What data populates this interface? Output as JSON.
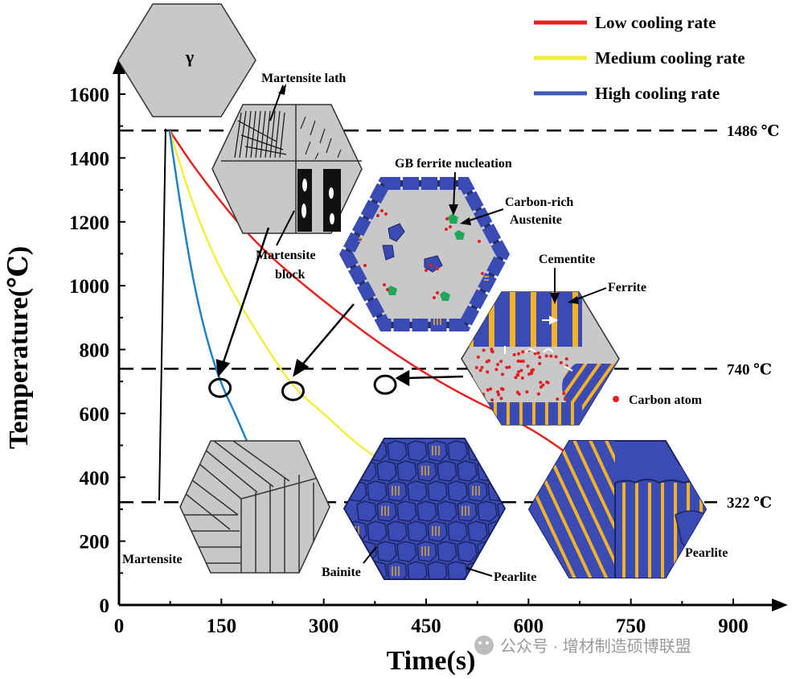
{
  "axes": {
    "ylabel": "Temperature(℃)",
    "xlabel": "Time(s)",
    "x_ticks": [
      "0",
      "150",
      "300",
      "450",
      "600",
      "750",
      "900"
    ],
    "y_ticks": [
      "0",
      "200",
      "400",
      "600",
      "800",
      "1000",
      "1200",
      "1400",
      "1600"
    ],
    "x_range": [
      0,
      900
    ],
    "y_range": [
      0,
      1600
    ]
  },
  "legend": {
    "items": [
      {
        "label": "Low cooling rate",
        "color": "#e8201f"
      },
      {
        "label": "Medium cooling rate",
        "color": "#f2ee3a"
      },
      {
        "label": "High cooling rate",
        "color": "#3e5bb8"
      }
    ]
  },
  "temperature_lines": [
    {
      "value": 1486,
      "label": "1486 ℃"
    },
    {
      "value": 740,
      "label": "740 ℃"
    },
    {
      "value": 322,
      "label": "322 ℃"
    }
  ],
  "cooling_curves": [
    {
      "name": "Low cooling rate",
      "color": "#e8201f",
      "points": [
        [
          74,
          1486
        ],
        [
          120,
          1340
        ],
        [
          200,
          1130
        ],
        [
          300,
          950
        ],
        [
          400,
          790
        ],
        [
          500,
          660
        ],
        [
          600,
          560
        ],
        [
          680,
          440
        ]
      ]
    },
    {
      "name": "Medium cooling rate",
      "color": "#f2ee3a",
      "points": [
        [
          74,
          1486
        ],
        [
          110,
          1240
        ],
        [
          150,
          1040
        ],
        [
          200,
          860
        ],
        [
          255,
          680
        ],
        [
          300,
          600
        ],
        [
          350,
          500
        ],
        [
          400,
          430
        ]
      ]
    },
    {
      "name": "High cooling rate",
      "color": "#1f82c4",
      "points": [
        [
          74,
          1486
        ],
        [
          90,
          1250
        ],
        [
          110,
          1000
        ],
        [
          130,
          820
        ],
        [
          150,
          690
        ],
        [
          170,
          600
        ],
        [
          190,
          500
        ]
      ]
    }
  ],
  "markers": [
    {
      "x": 148,
      "y": 680
    },
    {
      "x": 255,
      "y": 670
    },
    {
      "x": 390,
      "y": 690
    }
  ],
  "labels": {
    "gamma": "γ",
    "martensite_lath": "Martensite lath",
    "martensite_block_1": "Martensite",
    "martensite_block_2": "block",
    "gb_ferrite": "GB ferrite nucleation",
    "carbon_rich_1": "Carbon-rich",
    "carbon_rich_2": "Austenite",
    "cementite": "Cementite",
    "ferrite": "Ferrite",
    "carbon_atom": "Carbon atom",
    "martensite": "Martensite",
    "bainite": "Bainite",
    "pearlite_mid": "Pearlite",
    "pearlite_right": "Pearlite"
  },
  "watermark": "公众号 · 增材制造硕博联盟",
  "colors": {
    "grain_blue": "#3a4bb5",
    "cementite_yellow": "#f5b323",
    "austenite_gray": "#c8c8c8",
    "carbon_red": "#e02020",
    "nucleus_green": "#1fa85a"
  }
}
